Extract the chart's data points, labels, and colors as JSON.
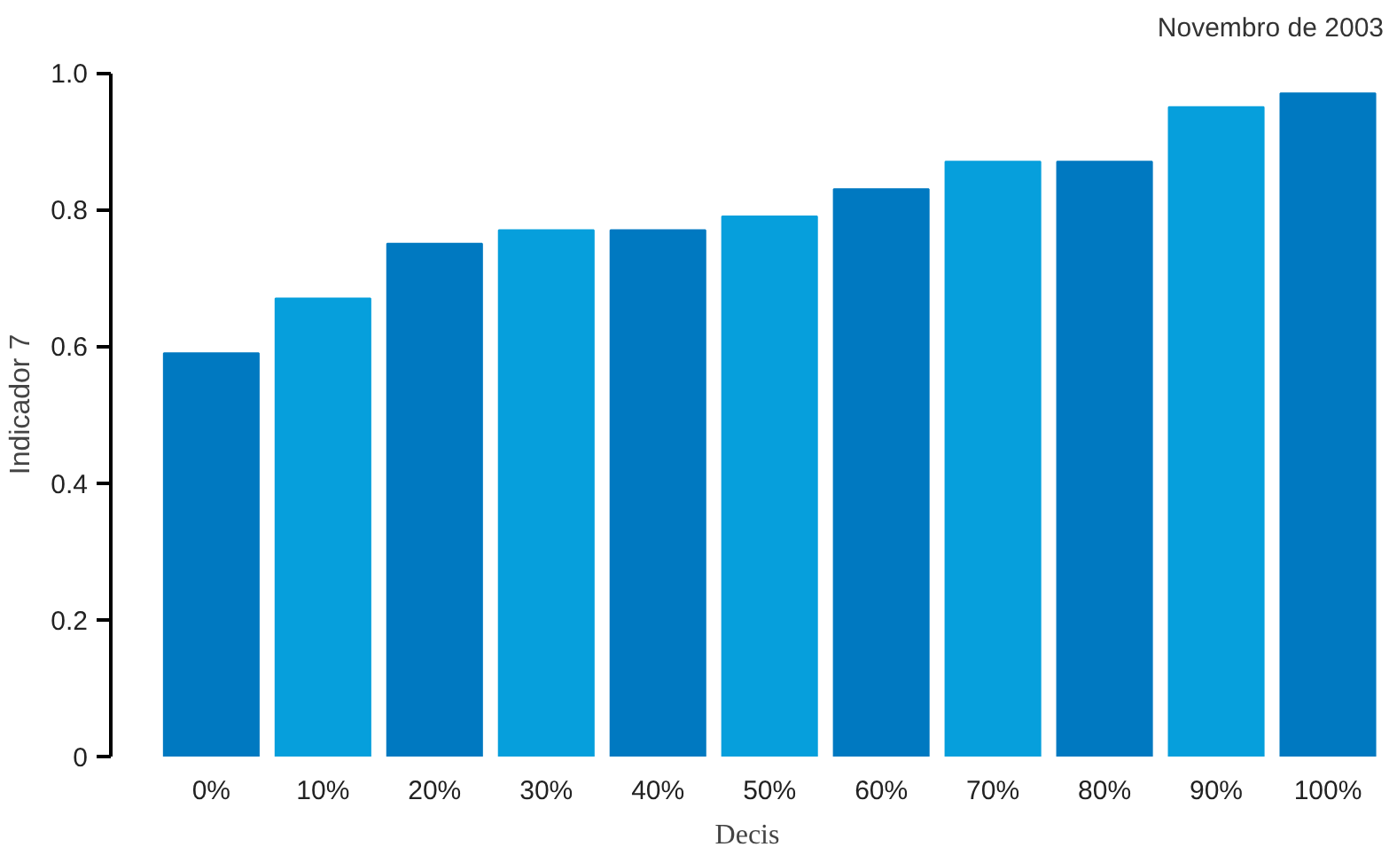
{
  "chart_data": {
    "type": "bar",
    "title": "Novembro de 2003",
    "xlabel": "Decis",
    "ylabel": "Indicador 7",
    "categories": [
      "0%",
      "10%",
      "20%",
      "30%",
      "40%",
      "50%",
      "60%",
      "70%",
      "80%",
      "90%",
      "100%"
    ],
    "values": [
      0.59,
      0.67,
      0.75,
      0.77,
      0.77,
      0.79,
      0.83,
      0.87,
      0.87,
      0.95,
      0.97
    ],
    "colors": [
      "#0079c1",
      "#069fdc",
      "#0079c1",
      "#069fdc",
      "#0079c1",
      "#069fdc",
      "#0079c1",
      "#069fdc",
      "#0079c1",
      "#069fdc",
      "#0079c1"
    ],
    "ylim": [
      0,
      1.0
    ],
    "yticks": [
      0,
      {
        "value": 0.2,
        "label": "0.2"
      },
      {
        "value": 0.4,
        "label": "0.4"
      },
      {
        "value": 0.6,
        "label": "0.6"
      },
      {
        "value": 0.8,
        "label": "0.8"
      },
      {
        "value": 1.0,
        "label": "1.0"
      }
    ],
    "grid": false
  }
}
